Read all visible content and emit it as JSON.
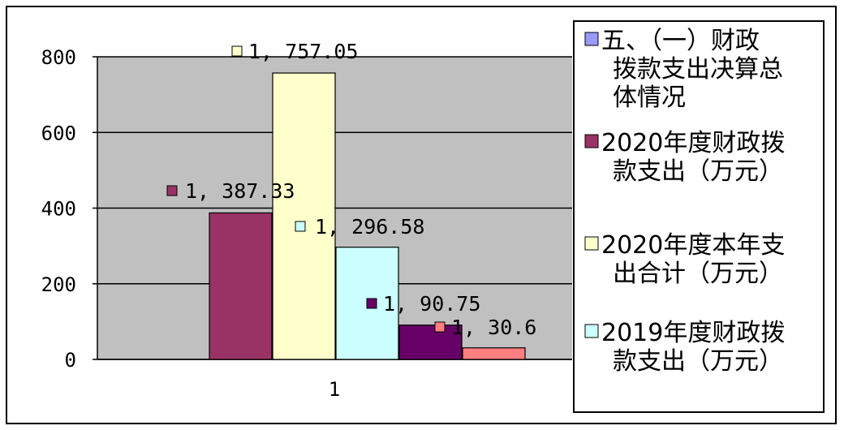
{
  "chart_data": {
    "type": "bar",
    "categories": [
      "1"
    ],
    "ylim": [
      0,
      800
    ],
    "yticks": [
      0,
      200,
      400,
      600,
      800
    ],
    "grid": true,
    "legend_position": "right",
    "series": [
      {
        "name": "五、（一）财政拨款支出决算总体情况",
        "values": [
          0
        ],
        "color": "#9999ff",
        "data_label": ""
      },
      {
        "name": "2020年度财政拨款支出（万元）",
        "values": [
          387.33
        ],
        "color": "#993366",
        "data_label": "1, 387.33"
      },
      {
        "name": "2020年度本年支出合计（万元）",
        "values": [
          757.05
        ],
        "color": "#ffffcc",
        "data_label": "1, 757.05"
      },
      {
        "name": "2019年度财政拨款支出（万元）",
        "values": [
          296.58
        ],
        "color": "#ccffff",
        "data_label": "1, 296.58"
      },
      {
        "name": "",
        "values": [
          90.75
        ],
        "color": "#660066",
        "data_label": "1, 90.75"
      },
      {
        "name": "",
        "values": [
          30.6
        ],
        "color": "#ff8080",
        "data_label": "1, 30.6"
      }
    ],
    "legend_lines": [
      [
        "五、（一）财政",
        "拨款支出决算总",
        "体情况"
      ],
      [
        "2020年度财政拨",
        "款支出（万元）"
      ],
      [
        "2020年度本年支",
        "出合计（万元）"
      ],
      [
        "2019年度财政拨",
        "款支出（万元）"
      ]
    ]
  }
}
